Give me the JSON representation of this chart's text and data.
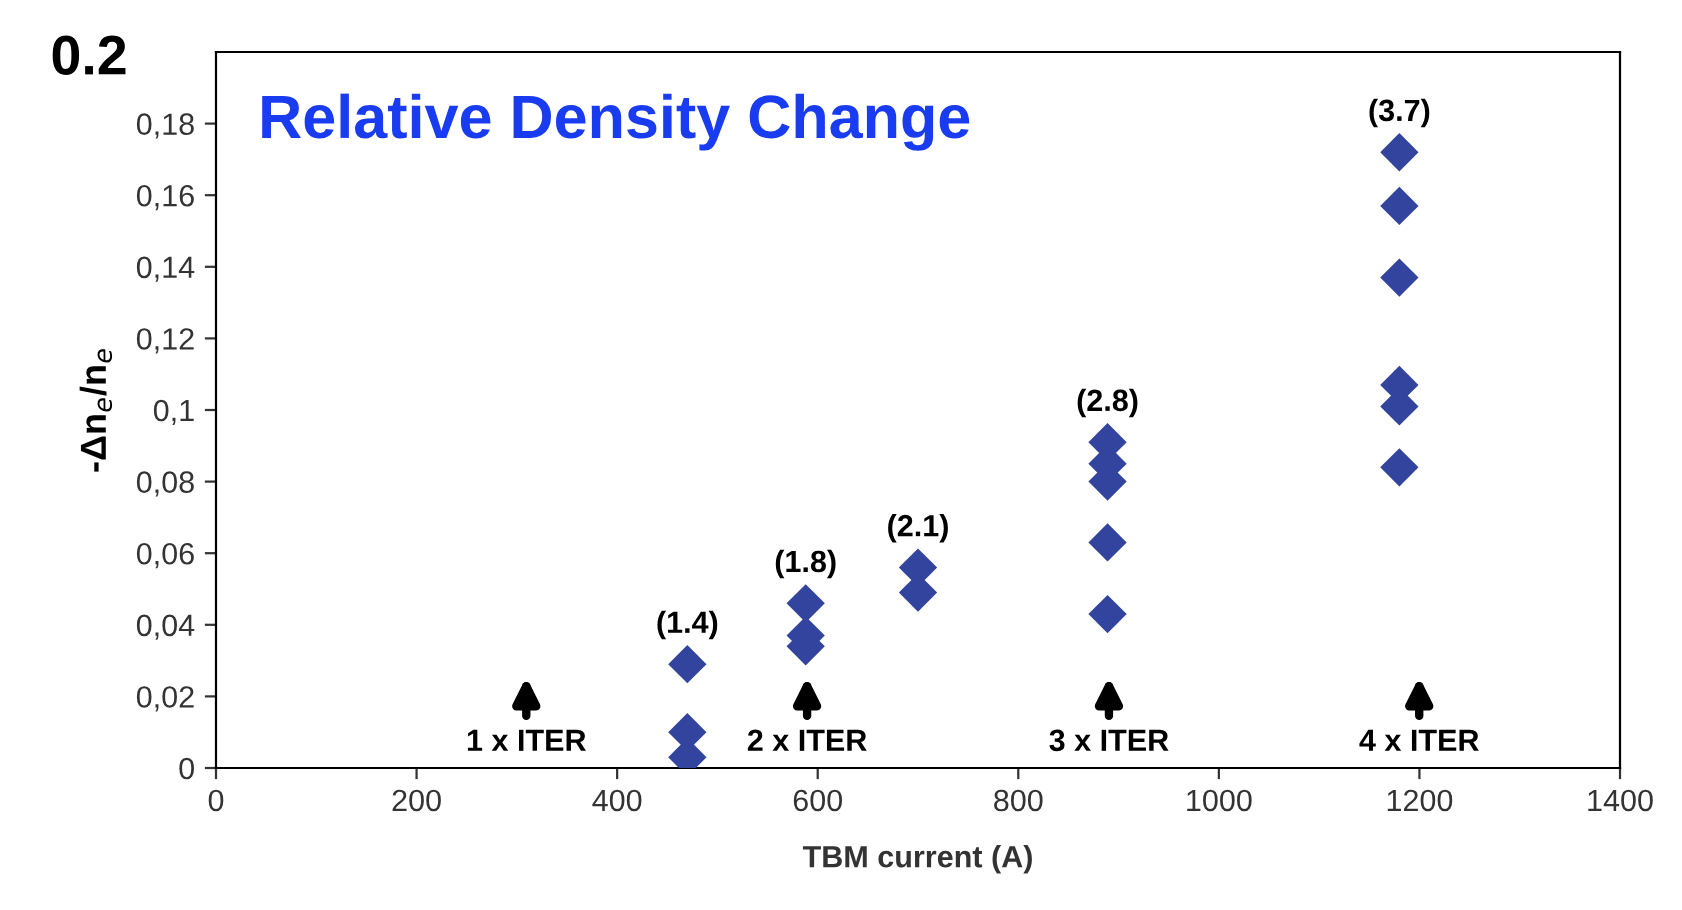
{
  "chart_data": {
    "type": "scatter",
    "title": "Relative Density Change",
    "xlabel": "TBM current (A)",
    "ylabel": "-Δn$_{e}$/n$_{e}$",
    "x": [
      470,
      470,
      470,
      588,
      588,
      588,
      700,
      700,
      889,
      889,
      889,
      889,
      889,
      1180,
      1180,
      1180,
      1180,
      1180,
      1180
    ],
    "series": [
      {
        "color": "#33449e",
        "values": [
          0.029,
          0.01,
          0.003,
          0.046,
          0.037,
          0.034,
          0.056,
          0.049,
          0.091,
          0.085,
          0.08,
          0.063,
          0.043,
          0.172,
          0.157,
          0.137,
          0.107,
          0.101,
          0.084
        ]
      }
    ],
    "marker": "diamond",
    "grid": false,
    "legend": false,
    "xlim": [
      0,
      1400
    ],
    "xticks": [
      0,
      200,
      400,
      600,
      800,
      1000,
      1200,
      1400
    ],
    "ylim": [
      0,
      0.2
    ],
    "yticks": [
      0,
      {
        "value": 0.02,
        "label": "0,02"
      },
      {
        "value": 0.04,
        "label": "0,04"
      },
      {
        "value": 0.06,
        "label": "0,06"
      },
      {
        "value": 0.08,
        "label": "0,08"
      },
      {
        "value": 0.1,
        "label": "0,1"
      },
      {
        "value": 0.12,
        "label": "0,12"
      },
      {
        "value": 0.14,
        "label": "0,14"
      },
      {
        "value": 0.16,
        "label": "0,16"
      },
      {
        "value": 0.18,
        "label": "0,18"
      }
    ],
    "annotations": [
      "0.2",
      {
        "text": "(1.4)",
        "x": 470,
        "y": 0.029
      },
      {
        "text": "(1.8)",
        "x": 588,
        "y": 0.046
      },
      {
        "text": "(2.1)",
        "x": 700,
        "y": 0.056
      },
      {
        "text": "(2.8)",
        "x": 889,
        "y": 0.091
      },
      {
        "text": "(3.7)",
        "x": 1180,
        "y": 0.172
      },
      "1 x ITER",
      "2 x ITER",
      "3 x ITER",
      "4 x ITER"
    ]
  }
}
